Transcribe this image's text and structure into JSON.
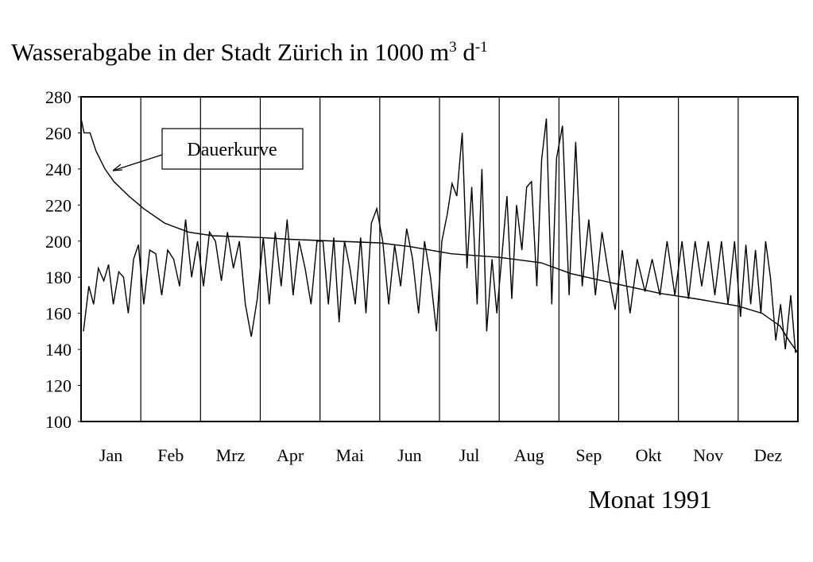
{
  "chart_data": {
    "type": "line",
    "title": [
      "Wasserabgabe in der Stadt Zürich in 1000 m",
      "3",
      " d",
      "-1"
    ],
    "x_label": "Monat 1991",
    "categories": [
      "Jan",
      "Feb",
      "Mrz",
      "Apr",
      "Mai",
      "Jun",
      "Jul",
      "Aug",
      "Sep",
      "Okt",
      "Nov",
      "Dez"
    ],
    "xlim": [
      0,
      12
    ],
    "ylim": [
      100,
      280
    ],
    "yticks": [
      100,
      120,
      140,
      160,
      180,
      200,
      220,
      240,
      260,
      280
    ],
    "grid": false,
    "series": [
      {
        "color": "#000000",
        "x": [
          0.04,
          0.13,
          0.21,
          0.29,
          0.38,
          0.46,
          0.54,
          0.63,
          0.71,
          0.79,
          0.88,
          0.96,
          1.05,
          1.15,
          1.25,
          1.35,
          1.45,
          1.55,
          1.65,
          1.75,
          1.85,
          1.95,
          2.05,
          2.15,
          2.25,
          2.35,
          2.45,
          2.55,
          2.65,
          2.75,
          2.85,
          2.95,
          3.05,
          3.15,
          3.25,
          3.35,
          3.45,
          3.55,
          3.65,
          3.75,
          3.85,
          3.95,
          4.05,
          4.14,
          4.23,
          4.32,
          4.41,
          4.5,
          4.59,
          4.68,
          4.77,
          4.86,
          4.95,
          5.05,
          5.15,
          5.25,
          5.35,
          5.45,
          5.55,
          5.65,
          5.75,
          5.85,
          5.95,
          6.04,
          6.13,
          6.21,
          6.29,
          6.38,
          6.46,
          6.54,
          6.63,
          6.71,
          6.79,
          6.88,
          6.96,
          7.04,
          7.13,
          7.21,
          7.29,
          7.38,
          7.46,
          7.54,
          7.63,
          7.71,
          7.79,
          7.88,
          7.96,
          8.06,
          8.17,
          8.28,
          8.39,
          8.5,
          8.61,
          8.72,
          8.83,
          8.94,
          9.06,
          9.19,
          9.31,
          9.44,
          9.56,
          9.69,
          9.81,
          9.94,
          10.06,
          10.17,
          10.28,
          10.39,
          10.5,
          10.61,
          10.72,
          10.83,
          10.94,
          11.04,
          11.13,
          11.21,
          11.29,
          11.38,
          11.46,
          11.54,
          11.63,
          11.71,
          11.79,
          11.88,
          11.96
        ],
        "values": [
          150,
          175,
          165,
          185,
          178,
          187,
          165,
          183,
          180,
          160,
          190,
          198,
          165,
          195,
          193,
          170,
          195,
          190,
          175,
          212,
          180,
          200,
          175,
          205,
          200,
          178,
          205,
          185,
          200,
          165,
          147,
          168,
          202,
          165,
          205,
          175,
          212,
          170,
          200,
          185,
          165,
          200,
          200,
          165,
          202,
          155,
          200,
          185,
          165,
          202,
          160,
          210,
          218,
          200,
          165,
          198,
          175,
          207,
          190,
          160,
          200,
          180,
          150,
          200,
          215,
          232,
          225,
          260,
          185,
          230,
          165,
          240,
          150,
          190,
          160,
          190,
          225,
          168,
          220,
          195,
          230,
          233,
          175,
          245,
          268,
          165,
          246,
          264,
          170,
          255,
          175,
          212,
          170,
          205,
          182,
          162,
          195,
          160,
          190,
          172,
          190,
          170,
          200,
          170,
          200,
          168,
          200,
          175,
          200,
          170,
          200,
          165,
          200,
          158,
          198,
          165,
          195,
          160,
          200,
          180,
          145,
          165,
          140,
          170,
          138
        ]
      },
      {
        "name": "Dauerkurve",
        "color": "#000000",
        "x": [
          0,
          0.05,
          0.15,
          0.25,
          0.4,
          0.55,
          0.8,
          1.05,
          1.4,
          1.8,
          2.2,
          3,
          3.5,
          5,
          5.5,
          6.2,
          7,
          7.7,
          8.2,
          9,
          9.7,
          10.3,
          11,
          11.4,
          11.7,
          11.85,
          12
        ],
        "values": [
          268,
          260,
          260,
          250,
          240,
          233,
          225,
          218,
          210,
          205,
          203,
          202,
          201,
          199,
          197,
          193,
          191,
          188,
          182,
          176,
          171,
          168,
          164,
          160,
          153,
          145,
          138
        ]
      }
    ]
  }
}
